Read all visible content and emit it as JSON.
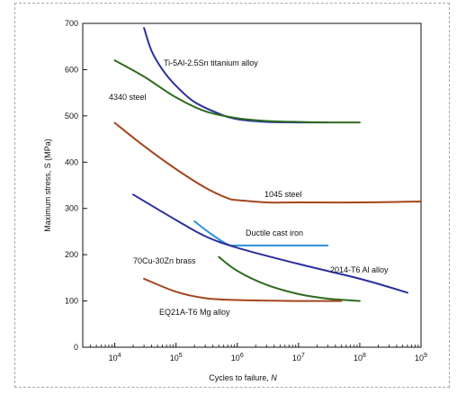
{
  "chart_data": {
    "type": "line",
    "title": "",
    "xlabel": "Cycles to failure, N",
    "ylabel": "Maximum stress, S (MPa)",
    "xscale": "log",
    "xlim": [
      3000,
      1000000000
    ],
    "ylim": [
      0,
      700
    ],
    "x_ticks": [
      10000,
      100000,
      1000000,
      10000000,
      100000000,
      1000000000
    ],
    "x_tick_labels": [
      {
        "base": "10",
        "exp": "4"
      },
      {
        "base": "10",
        "exp": "5"
      },
      {
        "base": "10",
        "exp": "6"
      },
      {
        "base": "10",
        "exp": "7"
      },
      {
        "base": "10",
        "exp": "8"
      },
      {
        "base": "10",
        "exp": "9"
      }
    ],
    "y_ticks": [
      0,
      100,
      200,
      300,
      400,
      500,
      600,
      700
    ],
    "y_tick_labels": [
      "0",
      "100",
      "200",
      "300",
      "400",
      "500",
      "600",
      "700"
    ],
    "grid": false,
    "legend": "none",
    "series": [
      {
        "name": "Ti-5Al-2.5Sn titanium alloy",
        "color": "#2b2f9e",
        "x": [
          30000,
          40000,
          60000,
          100000,
          200000,
          500000,
          1000000,
          3000000,
          10000000,
          30000000
        ],
        "y": [
          690,
          640,
          600,
          565,
          530,
          505,
          493,
          487,
          486,
          486
        ]
      },
      {
        "name": "4340 steel",
        "color": "#2e6b1f",
        "x": [
          10000,
          30000,
          100000,
          300000,
          1000000,
          3000000,
          10000000,
          30000000,
          100000000
        ],
        "y": [
          620,
          585,
          540,
          510,
          495,
          489,
          487,
          486,
          486
        ]
      },
      {
        "name": "1045 steel",
        "color": "#a3461c",
        "x": [
          10000,
          30000,
          100000,
          300000,
          700000,
          1000000,
          3000000,
          10000000,
          100000000,
          1000000000
        ],
        "y": [
          485,
          435,
          385,
          345,
          322,
          318,
          313,
          313,
          313,
          315
        ]
      },
      {
        "name": "Ductile cast iron",
        "color": "#2f8fdb",
        "x": [
          200000,
          400000,
          700000,
          1000000,
          3000000,
          10000000,
          30000000
        ],
        "y": [
          272,
          242,
          222,
          220,
          220,
          220,
          220
        ]
      },
      {
        "name": "2014-T6 Al alloy",
        "color": "#2b2f9e",
        "x": [
          20000,
          100000,
          300000,
          1000000,
          10000000,
          100000000,
          600000000
        ],
        "y": [
          330,
          275,
          240,
          215,
          180,
          148,
          118
        ]
      },
      {
        "name": "70Cu-30Zn brass",
        "color": "#2e6b1f",
        "x": [
          500000,
          1000000,
          3000000,
          10000000,
          30000000,
          100000000
        ],
        "y": [
          195,
          165,
          135,
          115,
          105,
          100
        ]
      },
      {
        "name": "EQ21A-T6 Mg alloy",
        "color": "#a3461c",
        "x": [
          30000,
          100000,
          300000,
          1000000,
          10000000,
          50000000
        ],
        "y": [
          148,
          120,
          106,
          102,
          100,
          100
        ]
      }
    ],
    "label_texts": {
      "ti": "Ti-5Al-2.5Sn titanium alloy",
      "s4340": "4340 steel",
      "s1045": "1045 steel",
      "dci": "Ductile cast iron",
      "al": "2014-T6 Al alloy",
      "brass": "70Cu-30Zn brass",
      "mg": "EQ21A-T6 Mg alloy"
    }
  }
}
